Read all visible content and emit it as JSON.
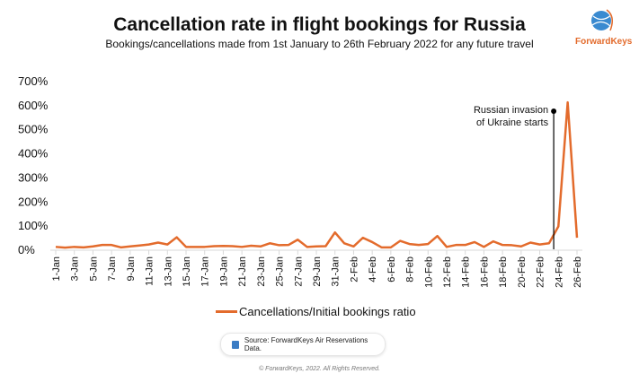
{
  "logo": {
    "text": "ForwardKeys"
  },
  "chart_data": {
    "type": "line",
    "title": "Cancellation rate in flight bookings for Russia",
    "subtitle": "Bookings/cancellations made from 1st January to 26th February 2022 for any future travel",
    "xlabel": "",
    "ylabel": "",
    "ylim": [
      0,
      700
    ],
    "yticks": [
      "0%",
      "100%",
      "200%",
      "300%",
      "400%",
      "500%",
      "600%",
      "700%"
    ],
    "xtick_labels": [
      "1-Jan",
      "3-Jan",
      "5-Jan",
      "7-Jan",
      "9-Jan",
      "11-Jan",
      "13-Jan",
      "15-Jan",
      "17-Jan",
      "19-Jan",
      "21-Jan",
      "23-Jan",
      "25-Jan",
      "27-Jan",
      "29-Jan",
      "31-Jan",
      "2-Feb",
      "4-Feb",
      "6-Feb",
      "8-Feb",
      "10-Feb",
      "12-Feb",
      "14-Feb",
      "16-Feb",
      "18-Feb",
      "20-Feb",
      "22-Feb",
      "24-Feb",
      "26-Feb"
    ],
    "series": [
      {
        "name": "Cancellations/Initial bookings ratio",
        "color": "#e36b2c",
        "values": [
          10,
          7,
          10,
          8,
          12,
          18,
          18,
          8,
          12,
          16,
          20,
          28,
          20,
          50,
          10,
          10,
          10,
          13,
          14,
          13,
          10,
          15,
          12,
          25,
          17,
          18,
          40,
          10,
          12,
          13,
          70,
          25,
          12,
          48,
          30,
          8,
          8,
          35,
          22,
          18,
          22,
          55,
          10,
          18,
          18,
          30,
          10,
          33,
          18,
          17,
          12,
          28,
          20,
          25,
          95,
          610,
          48
        ]
      }
    ],
    "annotation": {
      "text_line1": "Russian invasion",
      "text_line2": "of Ukraine starts",
      "day_index": 53.5
    },
    "legend": "bottom-center",
    "grid": false
  },
  "source": "Source: ForwardKeys Air Reservations Data.",
  "copyright": "© ForwardKeys, 2022. All Rights Reserved."
}
